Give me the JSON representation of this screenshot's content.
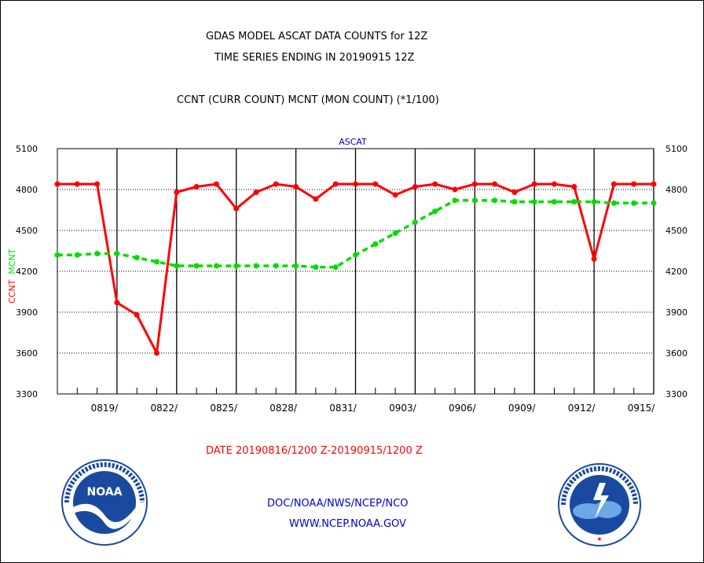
{
  "header": {
    "title_line1": "GDAS MODEL ASCAT DATA COUNTS for 12Z",
    "title_line2": "TIME SERIES ENDING IN 20190915 12Z",
    "subtitle": "CCNT (CURR COUNT) MCNT (MON COUNT) (*1/100)"
  },
  "footer": {
    "date_range": "DATE 20190816/1200 Z-20190915/1200 Z",
    "credit": "DOC/NOAA/NWS/NCEP/NCO",
    "url": "WWW.NCEP.NOAA.GOV"
  },
  "logos": {
    "left": "NOAA",
    "right": "NATIONAL WEATHER SERVICE"
  },
  "chart_data": {
    "type": "line",
    "title": "ASCAT",
    "ylabel_left": "CCNT",
    "ylabel_right": "MCNT",
    "ylim": [
      3300,
      5100
    ],
    "yticks": [
      3300,
      3600,
      3900,
      4200,
      4500,
      4800,
      5100
    ],
    "ytick_labels": [
      "3300",
      "3600",
      "3900",
      "4200",
      "4500",
      "4800",
      "5100"
    ],
    "x": [
      "0816",
      "0817",
      "0818",
      "0819",
      "0820",
      "0821",
      "0822",
      "0823",
      "0824",
      "0825",
      "0826",
      "0827",
      "0828",
      "0829",
      "0830",
      "0831",
      "0901",
      "0902",
      "0903",
      "0904",
      "0905",
      "0906",
      "0907",
      "0908",
      "0909",
      "0910",
      "0911",
      "0912",
      "0913",
      "0914",
      "0915"
    ],
    "xtick_labels": [
      "0819/",
      "0822/",
      "0825/",
      "0828/",
      "0831/",
      "0903/",
      "0906/",
      "0909/",
      "0912/",
      "0915/"
    ],
    "xtick_positions": [
      3,
      6,
      9,
      12,
      15,
      18,
      21,
      24,
      27,
      30
    ],
    "grid": true,
    "series": [
      {
        "name": "CCNT",
        "color": "#ff0000",
        "style": "solid",
        "values": [
          4840,
          4840,
          4840,
          3970,
          3880,
          3600,
          4780,
          4820,
          4840,
          4660,
          4780,
          4840,
          4820,
          4730,
          4840,
          4840,
          4840,
          4760,
          4820,
          4840,
          4800,
          4840,
          4840,
          4780,
          4840,
          4840,
          4820,
          4290,
          4840,
          4840,
          4840
        ]
      },
      {
        "name": "MCNT",
        "color": "#00dd00",
        "style": "dashed",
        "values": [
          4320,
          4320,
          4330,
          4330,
          4300,
          4270,
          4240,
          4240,
          4240,
          4240,
          4240,
          4240,
          4240,
          4230,
          4230,
          4320,
          4400,
          4480,
          4560,
          4640,
          4720,
          4720,
          4720,
          4710,
          4710,
          4710,
          4710,
          4710,
          4700,
          4700,
          4700
        ]
      }
    ]
  }
}
